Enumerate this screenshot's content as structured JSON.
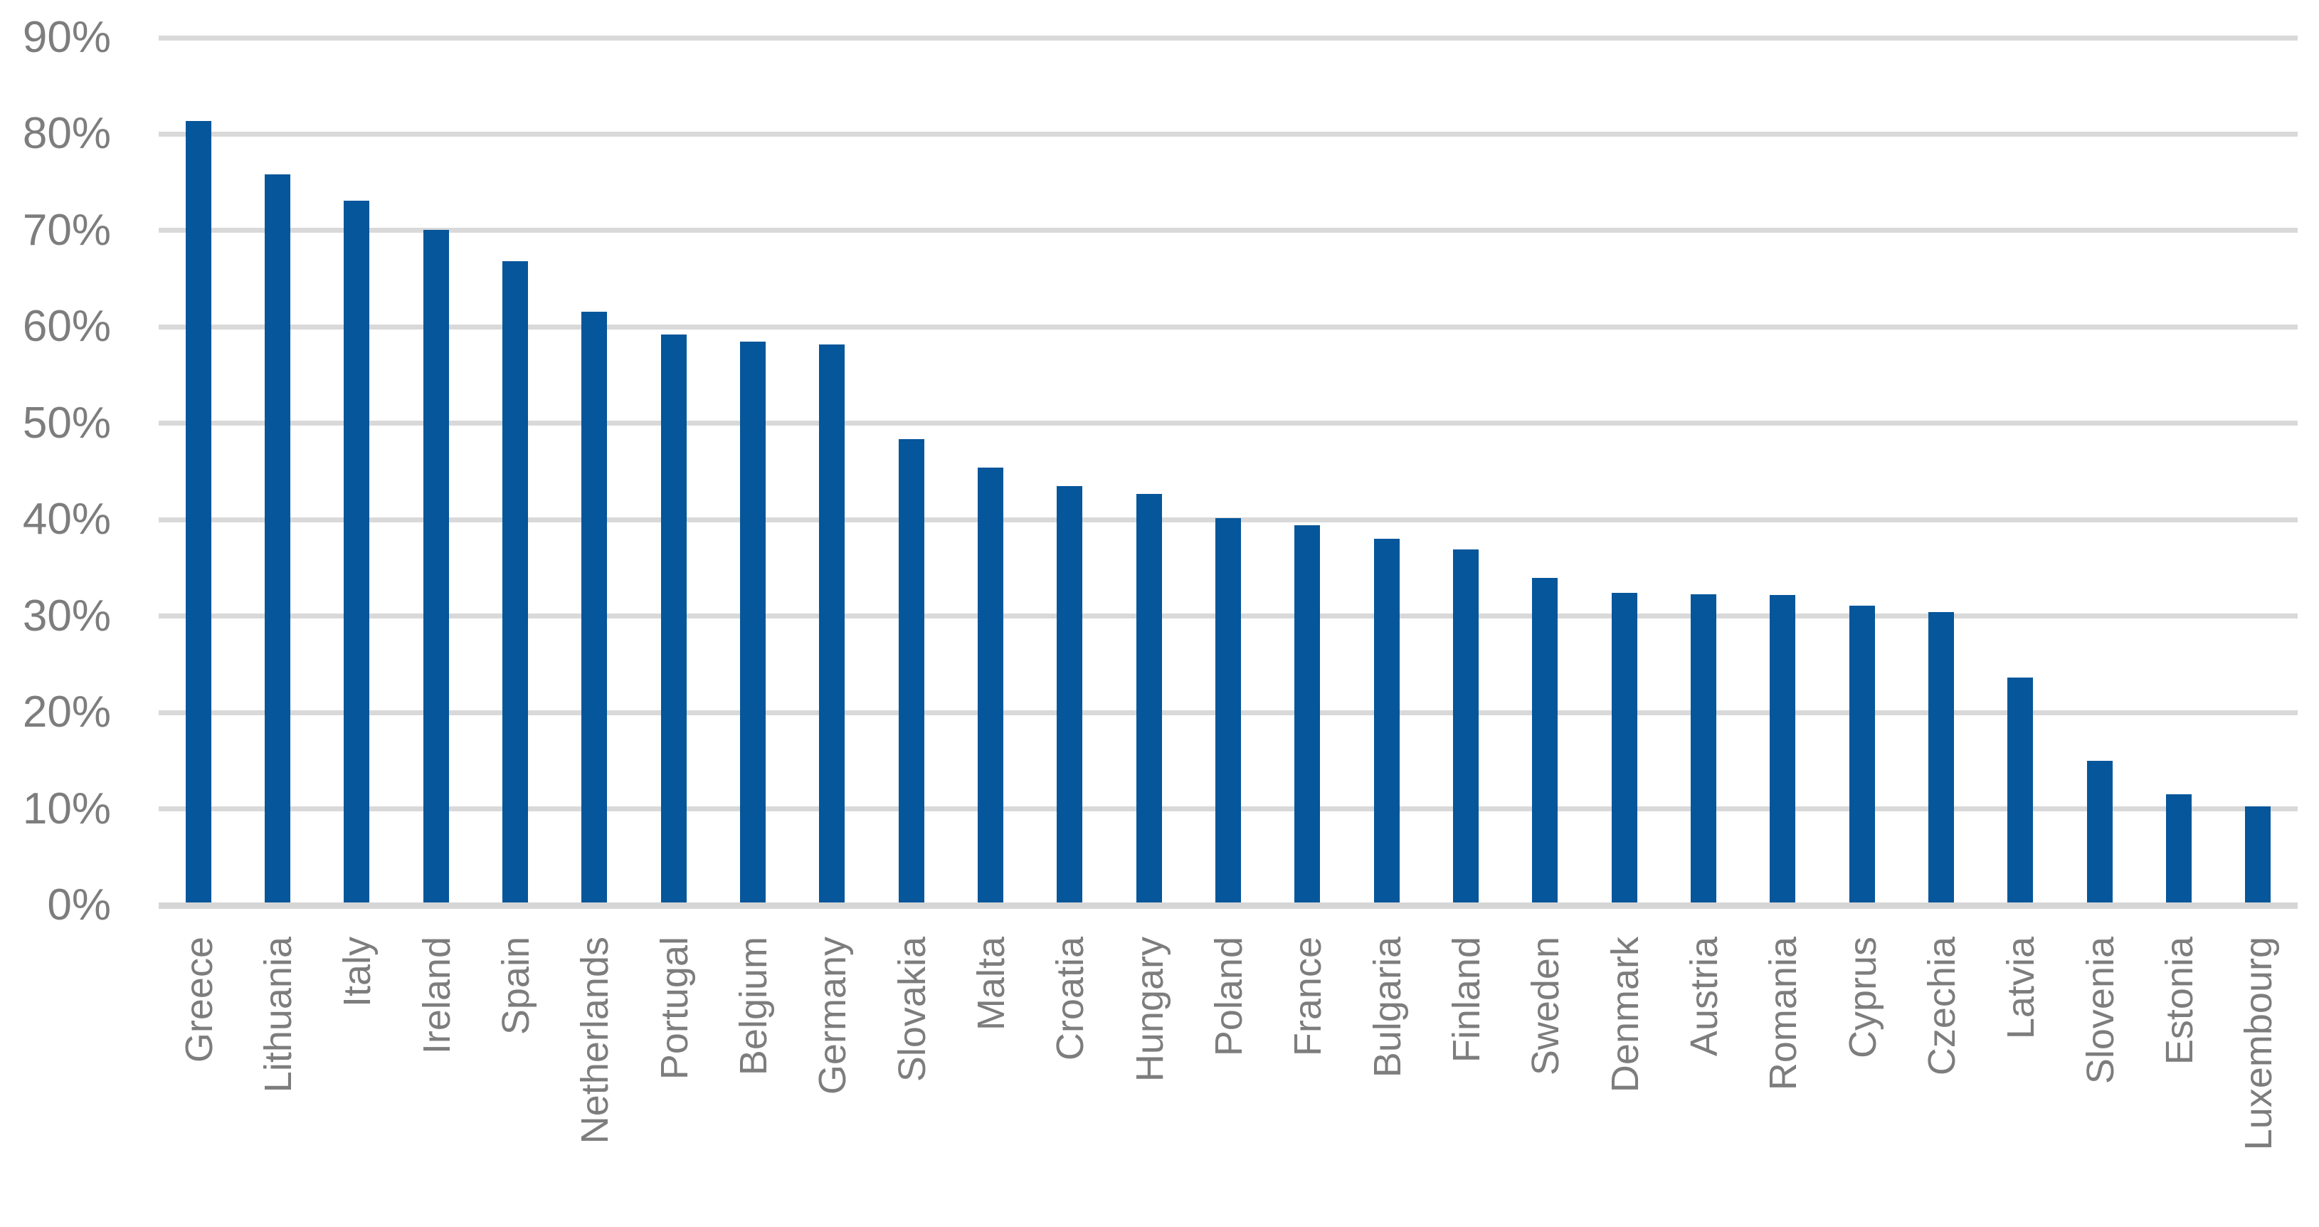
{
  "chart_data": {
    "type": "bar",
    "title": "",
    "xlabel": "",
    "ylabel": "",
    "unit": "%",
    "categories": [
      "Greece",
      "Lithuania",
      "Italy",
      "Ireland",
      "Spain",
      "Netherlands",
      "Portugal",
      "Belgium",
      "Germany",
      "Slovakia",
      "Malta",
      "Croatia",
      "Hungary",
      "Poland",
      "France",
      "Bulgaria",
      "Finland",
      "Sweden",
      "Denmark",
      "Austria",
      "Romania",
      "Cyprus",
      "Czechia",
      "Latvia",
      "Slovenia",
      "Estonia",
      "Luxembourg"
    ],
    "values": [
      81.1,
      75.5,
      72.8,
      69.8,
      66.5,
      61.3,
      58.9,
      58.2,
      57.9,
      48.1,
      45.1,
      43.2,
      42.4,
      39.9,
      39.1,
      37.7,
      36.6,
      33.7,
      32.1,
      32.0,
      31.9,
      30.8,
      30.1,
      23.3,
      14.7,
      11.2,
      10.0
    ],
    "ylim": [
      0,
      90
    ],
    "ytick_step": 10,
    "ytick_labels": [
      "0%",
      "10%",
      "20%",
      "30%",
      "40%",
      "50%",
      "60%",
      "70%",
      "80%",
      "90%"
    ],
    "grid": true,
    "legend": false,
    "colors": {
      "bar": "#05569B",
      "gridline": "#D9D9D9",
      "axis_line": "#D6D6D6",
      "tick_text": "#7D7D7D",
      "background": "#FFFFFF"
    }
  }
}
